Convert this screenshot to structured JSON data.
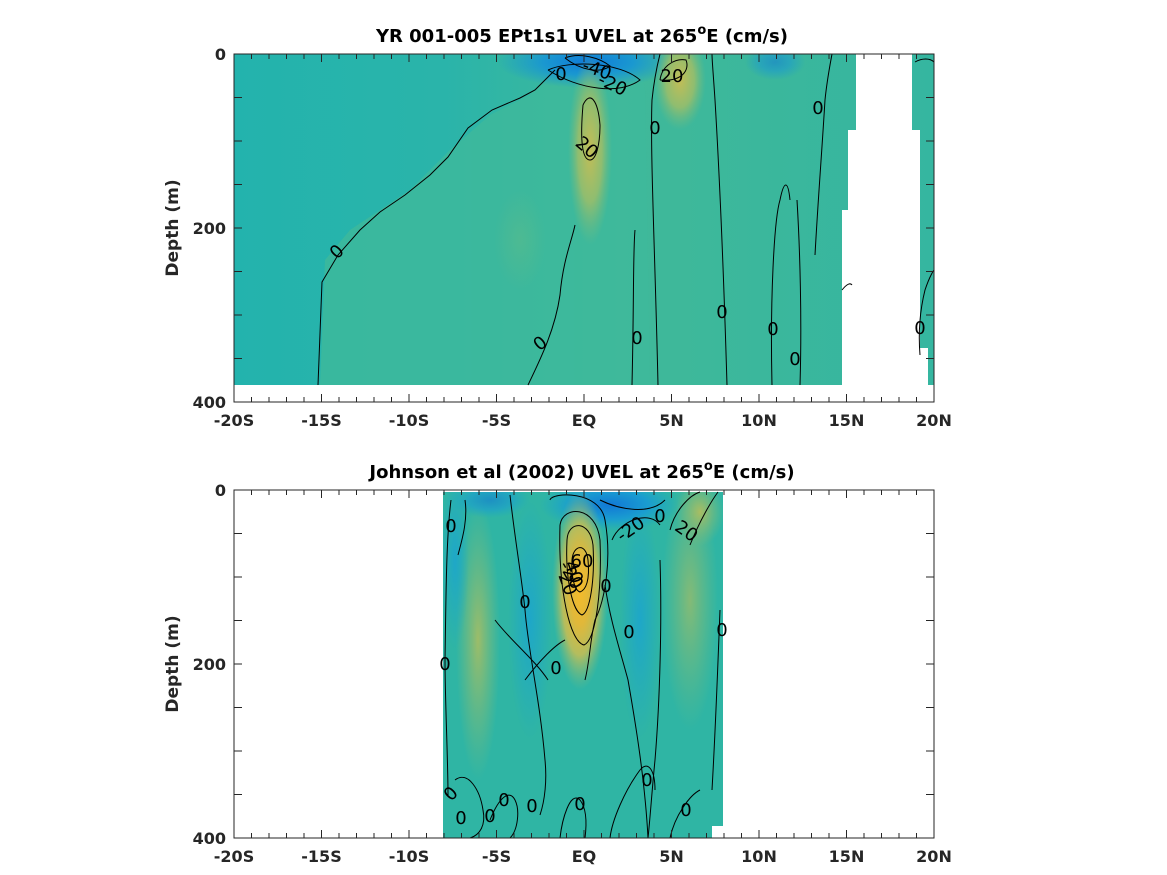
{
  "chart_data": [
    {
      "type": "heatmap",
      "subtype": "filled-contour",
      "title_main": "YR 001-005 EPt1s1 UVEL at 265",
      "title_sup": "o",
      "title_tail": "E (cm/s)",
      "xlabel": "",
      "ylabel": "Depth (m)",
      "x_ticks": [
        "-20S",
        "-15S",
        "-10S",
        "-5S",
        "EQ",
        "5N",
        "10N",
        "15N",
        "20N"
      ],
      "y_ticks": [
        "0",
        "200",
        "400"
      ],
      "xlim": [
        -20,
        20
      ],
      "ylim": [
        400,
        0
      ],
      "y_reversed": true,
      "colormap": "parula",
      "colors": {
        "strong_west": "#1a7ed8",
        "west": "#1aa6c8",
        "zero": "#3bb89a",
        "east": "#a8bd62",
        "strong_east": "#f0bc2c"
      },
      "contour_labels": [
        "0",
        "-40",
        "-20",
        "20",
        "0",
        "20",
        "0",
        "0",
        "0",
        "0",
        "0",
        "0",
        "0",
        "0"
      ],
      "features": [
        {
          "name": "surface westward jet",
          "lat": 0.5,
          "depth": 10,
          "value": -45
        },
        {
          "name": "equatorial undercurrent",
          "lat": 0.3,
          "depth": 90,
          "value": 25
        },
        {
          "name": "NECC",
          "lat": 5.0,
          "depth": 15,
          "value": 25
        }
      ]
    },
    {
      "type": "heatmap",
      "subtype": "filled-contour",
      "title_main": "Johnson et al (2002) UVEL at 265",
      "title_sup": "o",
      "title_tail": "E (cm/s)",
      "xlabel": "",
      "ylabel": "Depth (m)",
      "x_ticks": [
        "-20S",
        "-15S",
        "-10S",
        "-5S",
        "EQ",
        "5N",
        "10N",
        "15N",
        "20N"
      ],
      "y_ticks": [
        "0",
        "200",
        "400"
      ],
      "xlim": [
        -20,
        20
      ],
      "ylim": [
        400,
        0
      ],
      "y_reversed": true,
      "data_lat_range": [
        -8,
        8
      ],
      "colormap": "parula",
      "colors": {
        "strong_west": "#1a7ed8",
        "west": "#1aa6c8",
        "zero": "#3bb89a",
        "east": "#a8bd62",
        "strong_east": "#f0bc2c"
      },
      "contour_labels": [
        "0",
        "-20",
        "20",
        "-20",
        "60",
        "40",
        "20",
        "0",
        "0",
        "0",
        "0",
        "0",
        "0",
        "0",
        "0",
        "0",
        "0",
        "0",
        "0",
        "0",
        "0",
        "0"
      ],
      "features": [
        {
          "name": "equatorial undercurrent",
          "lat": -0.2,
          "depth": 70,
          "value": 65
        },
        {
          "name": "surface westward flow",
          "lat": 1.5,
          "depth": 10,
          "value": -30
        },
        {
          "name": "NECC",
          "lat": 6.5,
          "depth": 15,
          "value": 25
        }
      ]
    }
  ]
}
